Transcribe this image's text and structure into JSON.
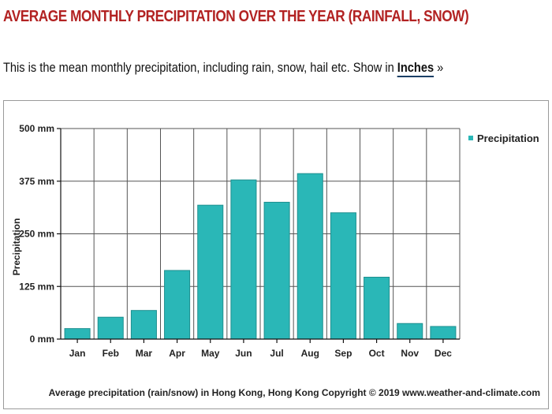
{
  "page": {
    "title": "AVERAGE MONTHLY PRECIPITATION OVER THE YEAR (RAINFALL, SNOW)",
    "intro_text": "This is the mean monthly precipitation, including rain, snow, hail etc. Show in ",
    "intro_link": "Inches",
    "intro_suffix": " »"
  },
  "colors": {
    "title": "#b22222",
    "bar": "#2ab7b7",
    "bar_stroke": "#1f8f8f"
  },
  "chart_data": {
    "type": "bar",
    "categories": [
      "Jan",
      "Feb",
      "Mar",
      "Apr",
      "May",
      "Jun",
      "Jul",
      "Aug",
      "Sep",
      "Oct",
      "Nov",
      "Dec"
    ],
    "series": [
      {
        "name": "Precipitation",
        "values": [
          25,
          52,
          68,
          163,
          318,
          378,
          325,
          393,
          300,
          147,
          37,
          30
        ]
      }
    ],
    "ylabel": "Precipitation",
    "xlabel": "",
    "ylim": [
      0,
      500
    ],
    "yticks": [
      0,
      125,
      250,
      375,
      500
    ],
    "ytick_labels": [
      "0 mm",
      "125 mm",
      "250 mm",
      "375 mm",
      "500 mm"
    ],
    "legend": {
      "label": "Precipitation",
      "position": "top-right"
    },
    "grid": true,
    "footer": "Average precipitation (rain/snow) in Hong Kong, Hong Kong   Copyright © 2019 www.weather-and-climate.com"
  }
}
